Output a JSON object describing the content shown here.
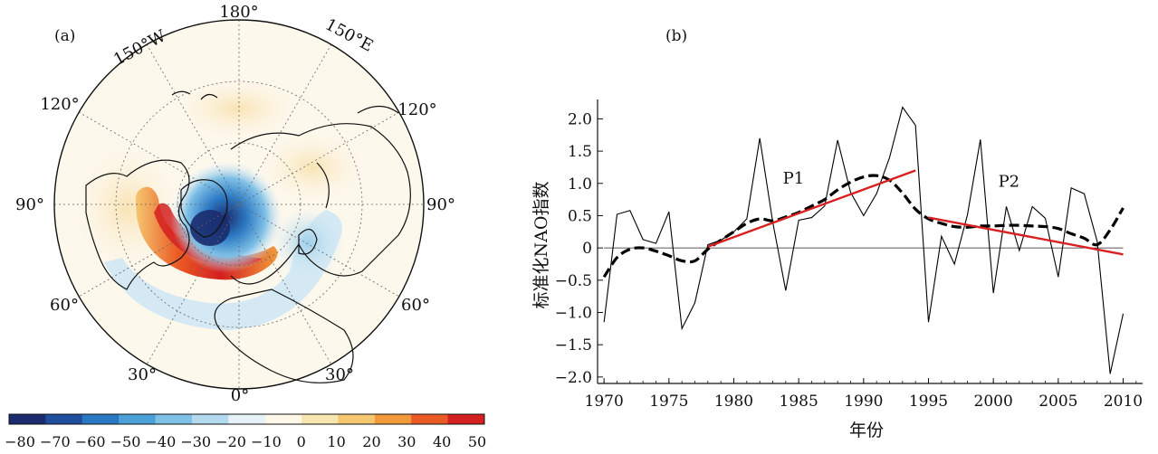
{
  "panels": {
    "a_label": "(a)",
    "b_label": "(b)"
  },
  "map": {
    "longitude_labels": {
      "top": "180°",
      "upper_left": "150°W",
      "upper_right": "150°E",
      "left_upper": "120°",
      "right_upper": "120°",
      "left_mid": "90°",
      "right_mid": "90°",
      "left_lower": "60°",
      "right_lower": "60°",
      "bottom_left": "30°",
      "bottom_right": "30°",
      "bottom": "0°"
    },
    "colorbar": {
      "tick_labels": [
        "−80",
        "−70",
        "−60",
        "−50",
        "−40",
        "−30",
        "−20",
        "−10",
        "0",
        "10",
        "20",
        "30",
        "40",
        "50"
      ],
      "colors": [
        "#1a2c6e",
        "#1f4e9c",
        "#2a78c4",
        "#4ba0d8",
        "#7fc0e6",
        "#b4daf0",
        "#e6f2f8",
        "#fdf7e8",
        "#f8e6b0",
        "#f5c770",
        "#f29a3a",
        "#ea5a25",
        "#d42020"
      ]
    }
  },
  "chart_data": {
    "type": "line",
    "xlabel": "年份",
    "ylabel": "标准化NAO指数",
    "xlim": [
      1969.5,
      2011.5
    ],
    "ylim": [
      -2.1,
      2.3
    ],
    "xticks": [
      1970,
      1975,
      1980,
      1985,
      1990,
      1995,
      2000,
      2005,
      2010
    ],
    "yticks": [
      -2.0,
      -1.5,
      -1.0,
      -0.5,
      0,
      0.5,
      1.0,
      1.5,
      2.0
    ],
    "ytick_labels": [
      "−2.0",
      "−1.5",
      "−1.0",
      "−0.5",
      "0",
      "0.5",
      "1.0",
      "1.5",
      "2.0"
    ],
    "series": [
      {
        "style": "thin-black",
        "x": [
          1970,
          1971,
          1972,
          1973,
          1974,
          1975,
          1976,
          1977,
          1978,
          1979,
          1980,
          1981,
          1982,
          1983,
          1984,
          1985,
          1986,
          1987,
          1988,
          1989,
          1990,
          1991,
          1992,
          1993,
          1994,
          1995,
          1996,
          1997,
          1998,
          1999,
          2000,
          2001,
          2002,
          2003,
          2004,
          2005,
          2006,
          2007,
          2008,
          2009,
          2010
        ],
        "values": [
          -1.15,
          0.52,
          0.58,
          0.13,
          0.07,
          0.56,
          -1.25,
          -0.85,
          0.05,
          0.12,
          0.25,
          0.45,
          1.7,
          0.4,
          -0.66,
          0.43,
          0.47,
          0.65,
          1.67,
          0.86,
          0.5,
          0.84,
          1.4,
          2.18,
          1.9,
          -1.15,
          0.18,
          -0.25,
          0.51,
          1.68,
          -0.7,
          0.64,
          -0.04,
          0.64,
          0.46,
          -0.45,
          0.93,
          0.84,
          0.1,
          -1.95,
          -1.02
        ],
        "color": "#000000"
      },
      {
        "style": "dashed-smooth",
        "x": [
          1970,
          1971,
          1972,
          1973,
          1974,
          1975,
          1976,
          1977,
          1978,
          1979,
          1980,
          1981,
          1982,
          1983,
          1984,
          1985,
          1986,
          1987,
          1988,
          1989,
          1990,
          1991,
          1992,
          1993,
          1994,
          1995,
          1996,
          1997,
          1998,
          1999,
          2000,
          2001,
          2002,
          2003,
          2004,
          2005,
          2006,
          2007,
          2008,
          2009,
          2010
        ],
        "values": [
          -0.45,
          -0.15,
          -0.02,
          0.0,
          -0.05,
          -0.12,
          -0.2,
          -0.2,
          -0.02,
          0.12,
          0.25,
          0.38,
          0.45,
          0.42,
          0.48,
          0.55,
          0.65,
          0.75,
          0.9,
          1.02,
          1.1,
          1.12,
          1.05,
          0.85,
          0.6,
          0.45,
          0.38,
          0.33,
          0.32,
          0.34,
          0.34,
          0.35,
          0.35,
          0.34,
          0.33,
          0.3,
          0.22,
          0.15,
          0.05,
          0.28,
          0.62
        ],
        "color": "#000000"
      }
    ],
    "trend_lines": [
      {
        "name": "P1",
        "x": [
          1978,
          1994
        ],
        "values": [
          0.02,
          1.2
        ],
        "color": "#d82020"
      },
      {
        "name": "P2",
        "x": [
          1995,
          2010
        ],
        "values": [
          0.47,
          -0.1
        ],
        "color": "#d82020"
      }
    ],
    "annotations": [
      {
        "text": "P1",
        "x": 1984.6,
        "y": 1.0
      },
      {
        "text": "P2",
        "x": 2001.2,
        "y": 0.95
      }
    ],
    "zero_line": true,
    "grid": false
  }
}
